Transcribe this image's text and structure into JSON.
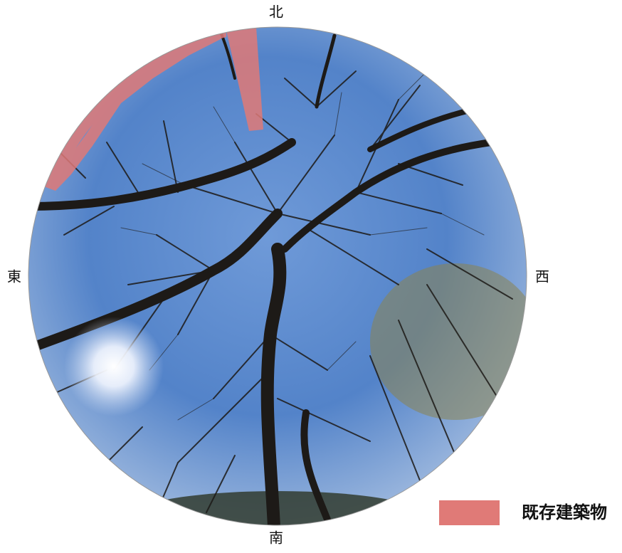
{
  "compass": {
    "north": "北",
    "east": "東",
    "west": "西",
    "south": "南"
  },
  "legend": {
    "label": "既存建築物"
  }
}
